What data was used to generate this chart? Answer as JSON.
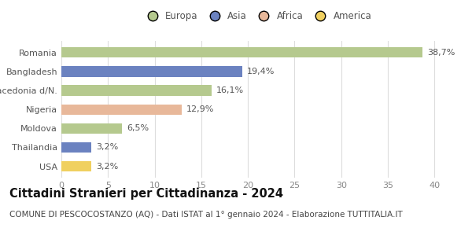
{
  "categories": [
    "Romania",
    "Bangladesh",
    "Macedonia d/N.",
    "Nigeria",
    "Moldova",
    "Thailandia",
    "USA"
  ],
  "values": [
    38.7,
    19.4,
    16.1,
    12.9,
    6.5,
    3.2,
    3.2
  ],
  "labels": [
    "38,7%",
    "19,4%",
    "16,1%",
    "12,9%",
    "6,5%",
    "3,2%",
    "3,2%"
  ],
  "colors": [
    "#b5c98e",
    "#6b82c0",
    "#b5c98e",
    "#e8b89a",
    "#b5c98e",
    "#6b82c0",
    "#f0d060"
  ],
  "legend_items": [
    {
      "label": "Europa",
      "color": "#b5c98e"
    },
    {
      "label": "Asia",
      "color": "#6b82c0"
    },
    {
      "label": "Africa",
      "color": "#e8b89a"
    },
    {
      "label": "America",
      "color": "#f0d060"
    }
  ],
  "xlim": [
    0,
    42
  ],
  "xticks": [
    0,
    5,
    10,
    15,
    20,
    25,
    30,
    35,
    40
  ],
  "title": "Cittadini Stranieri per Cittadinanza - 2024",
  "subtitle": "COMUNE DI PESCOCOSTANZO (AQ) - Dati ISTAT al 1° gennaio 2024 - Elaborazione TUTTITALIA.IT",
  "background_color": "#ffffff",
  "grid_color": "#dddddd",
  "bar_height": 0.55,
  "label_fontsize": 8.0,
  "title_fontsize": 10.5,
  "subtitle_fontsize": 7.5,
  "tick_fontsize": 8.0,
  "legend_fontsize": 8.5
}
